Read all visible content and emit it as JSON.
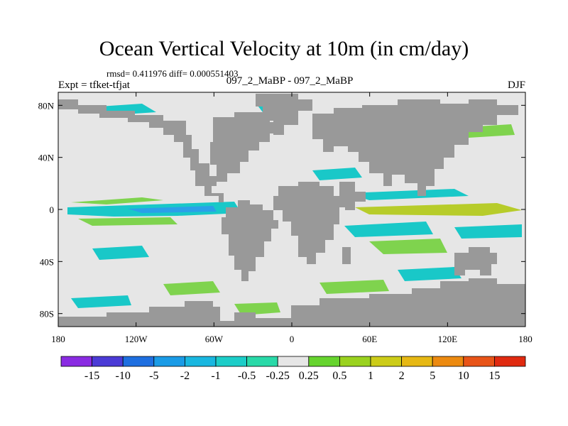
{
  "title": "Ocean Vertical Velocity at 10m (in cm/day)",
  "stats_text": "rmsd= 0.411976 diff= 0.000551403",
  "expt_text": "Expt = tfket-tfjat",
  "center_label": "097_2_MaBP - 097_2_MaBP",
  "season": "DJF",
  "map": {
    "lat_ticks": [
      "80N",
      "40N",
      "0",
      "40S",
      "80S"
    ],
    "lat_values": [
      80,
      40,
      0,
      -40,
      -80
    ],
    "lon_ticks": [
      "180",
      "120W",
      "60W",
      "0",
      "60E",
      "120E",
      "180"
    ],
    "lon_values": [
      -180,
      -120,
      -60,
      0,
      60,
      120,
      180
    ],
    "colors": {
      "ocean": "#e6e6e6",
      "land": "#999999",
      "positive": "#7fd34e",
      "positive_strong": "#b7cc2a",
      "negative": "#19c8c8",
      "negative_strong": "#2aa0e8"
    }
  },
  "colorbar": {
    "labels": [
      "-15",
      "-10",
      "-5",
      "-2",
      "-1",
      "-0.5",
      "-0.25",
      "0.25",
      "0.5",
      "1",
      "2",
      "5",
      "10",
      "15"
    ],
    "colors": [
      "#8a2be2",
      "#4b3bd6",
      "#1e6fe0",
      "#1a9be6",
      "#19b7e0",
      "#1ccdc8",
      "#29d9a8",
      "#e6e6e6",
      "#66d42e",
      "#9ad21f",
      "#cccc18",
      "#e6b814",
      "#ec8a10",
      "#e85418",
      "#e02a10"
    ]
  }
}
